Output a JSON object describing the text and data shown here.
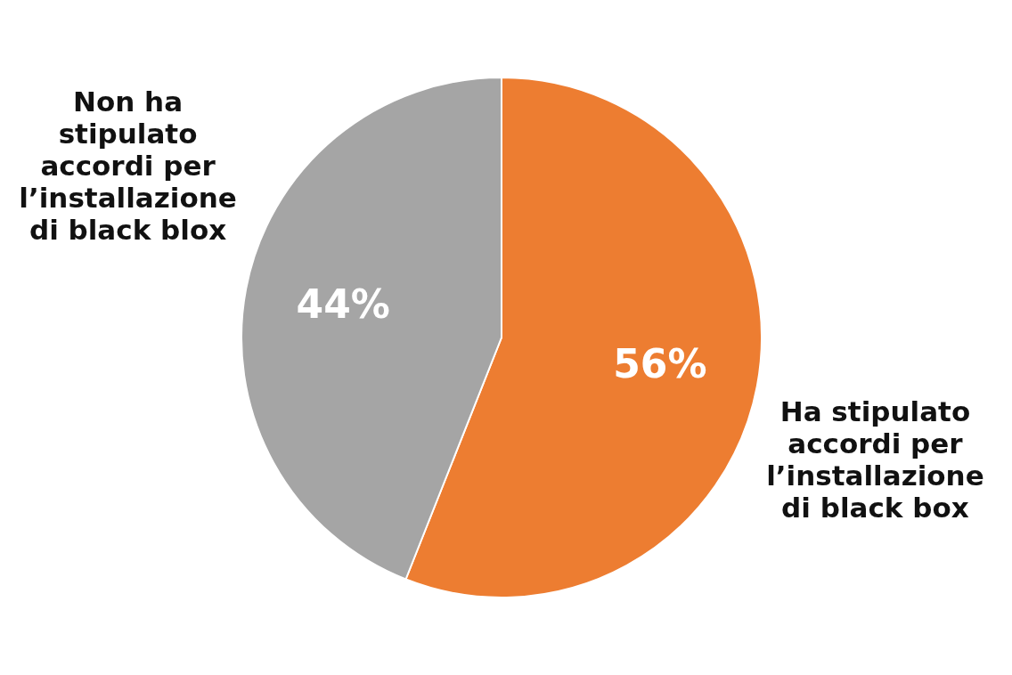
{
  "chart_data": {
    "type": "pie",
    "categories": [
      "Ha stipulato accordi per l’installazione di black box",
      "Non ha stipulato accordi per l’installazione di black blox"
    ],
    "values": [
      56,
      44
    ],
    "colors": [
      "#ed7d31",
      "#a5a5a5"
    ],
    "value_labels": [
      "56%",
      "44%"
    ],
    "legend": false
  }
}
